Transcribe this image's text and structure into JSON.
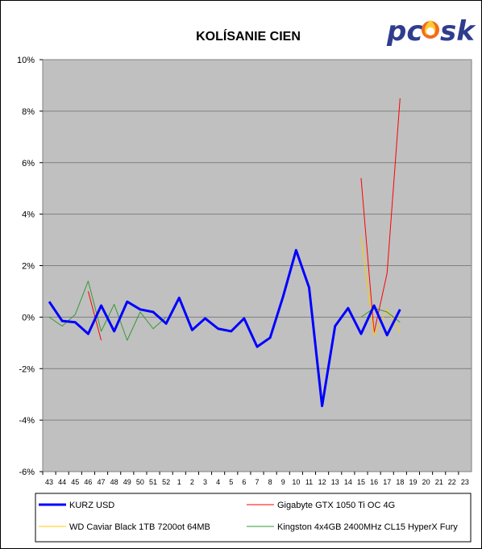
{
  "chart_data": {
    "type": "line",
    "title": "KOLÍSANIE CIEN",
    "y_ticks": [
      "10%",
      "8%",
      "6%",
      "4%",
      "2%",
      "0%",
      "-2%",
      "-4%",
      "-6%"
    ],
    "ylim": [
      -6,
      10
    ],
    "y_unit": "%",
    "grid": "horizontal",
    "legend_position": "bottom",
    "categories": [
      "43",
      "44",
      "45",
      "46",
      "47",
      "48",
      "49",
      "50",
      "51",
      "52",
      "1",
      "2",
      "3",
      "4",
      "5",
      "6",
      "7",
      "8",
      "9",
      "10",
      "11",
      "12",
      "13",
      "14",
      "15",
      "16",
      "17",
      "18",
      "19",
      "20",
      "21",
      "22",
      "23"
    ],
    "series": [
      {
        "name": "KURZ USD",
        "color": "#0000ff",
        "width": 3,
        "values": [
          0.6,
          -0.15,
          -0.2,
          -0.65,
          0.45,
          -0.55,
          0.6,
          0.3,
          0.2,
          -0.25,
          0.75,
          -0.5,
          -0.05,
          -0.45,
          -0.55,
          -0.05,
          -1.15,
          -0.8,
          0.8,
          2.6,
          1.15,
          -3.45,
          -0.35,
          0.35,
          -0.65,
          0.45,
          -0.7,
          0.3,
          null,
          null,
          null,
          null,
          null
        ]
      },
      {
        "name": "Gigabyte GTX 1050 Ti OC 4G",
        "color": "#ff0000",
        "width": 1,
        "values": [
          null,
          null,
          null,
          1.0,
          -0.9,
          null,
          null,
          null,
          null,
          null,
          null,
          null,
          null,
          null,
          null,
          null,
          null,
          null,
          null,
          null,
          null,
          null,
          null,
          null,
          5.4,
          -0.6,
          1.7,
          8.5,
          null,
          null,
          null,
          null,
          null
        ]
      },
      {
        "name": "WD Caviar Black 1TB 7200ot 64MB",
        "color": "#ffcc00",
        "width": 1,
        "values": [
          null,
          null,
          null,
          null,
          null,
          null,
          null,
          null,
          null,
          null,
          null,
          null,
          null,
          null,
          null,
          null,
          null,
          null,
          null,
          null,
          null,
          null,
          null,
          null,
          3.1,
          -0.7,
          0.3,
          -0.6,
          null,
          null,
          null,
          null,
          null
        ]
      },
      {
        "name": "Kingston 4x4GB 2400MHz CL15 HyperX Fury",
        "color": "#339933",
        "width": 1,
        "values": [
          0.0,
          -0.35,
          0.1,
          1.4,
          -0.55,
          0.5,
          -0.9,
          0.2,
          -0.45,
          0.0,
          null,
          null,
          null,
          null,
          null,
          null,
          null,
          null,
          null,
          null,
          null,
          null,
          null,
          null,
          0.0,
          0.35,
          0.2,
          -0.2,
          null,
          null,
          null,
          null,
          null
        ]
      }
    ]
  },
  "logo": {
    "text_pc": "pc",
    "text_o": "o",
    "text_sk": "sk",
    "icon": "flame-icon"
  }
}
